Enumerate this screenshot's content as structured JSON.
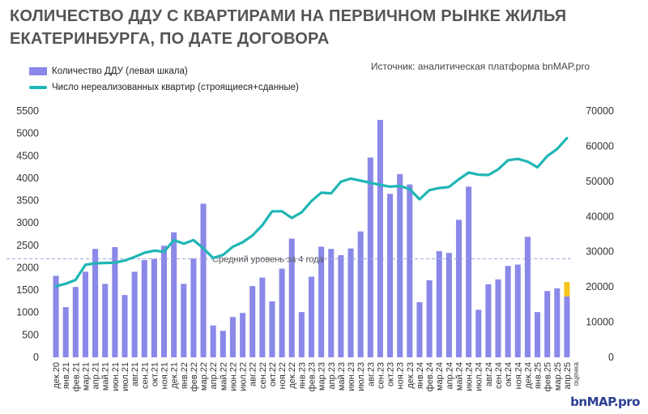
{
  "title_line1": "КОЛИЧЕСТВО ДДУ С КВАРТИРАМИ НА ПЕРВИЧНОМ РЫНКЕ ЖИЛЬЯ",
  "title_line2": "ЕКАТЕРИНБУРГА, ПО ДАТЕ ДОГОВОРА",
  "source": "Источник: аналитическая платформа bnMAP.pro",
  "brand": "bnMAP.pro",
  "colors": {
    "bar": "#8a88e8",
    "bar_estimate": "#f7c41f",
    "line": "#1fb6b5",
    "avg_line": "#9aa2e0"
  },
  "chart_data": {
    "type": "bar",
    "legend": [
      {
        "name": "Количество ДДУ (левая шкала)",
        "kind": "bar"
      },
      {
        "name": "Число нереализованных квартир (строящиеся+сданные)",
        "kind": "line"
      }
    ],
    "categories": [
      "дек.20",
      "янв.21",
      "фев.21",
      "мар.21",
      "апр.21",
      "май.21",
      "июн.21",
      "июл.21",
      "авг.21",
      "сен.21",
      "окт.21",
      "ноя.21",
      "дек.21",
      "янв.22",
      "фев.22",
      "мар.22",
      "апр.22",
      "май.22",
      "июн.22",
      "июл.22",
      "авг.22",
      "сен.22",
      "окт.22",
      "ноя.22",
      "дек.22",
      "янв.23",
      "фев.23",
      "мар.23",
      "апр.23",
      "май.23",
      "июн.23",
      "июл.23",
      "авг.23",
      "сен.23",
      "окт.23",
      "ноя.23",
      "дек.23",
      "янв.24",
      "фев.24",
      "мар.24",
      "апр.24",
      "май.24",
      "июн.24",
      "июл.24",
      "авг.24",
      "сен.24",
      "окт.24",
      "ноя.24",
      "дек.24",
      "янв.25",
      "фев.25",
      "мар.25",
      "апр.25"
    ],
    "estimate_label": "оценка",
    "series": [
      {
        "name": "Количество ДДУ (левая шкала)",
        "axis": "left",
        "values": [
          1820,
          1120,
          1570,
          1910,
          2420,
          1640,
          2460,
          1390,
          1910,
          2170,
          2200,
          2490,
          2790,
          1640,
          2210,
          3430,
          710,
          590,
          900,
          990,
          1590,
          1780,
          1250,
          1980,
          2650,
          1010,
          1800,
          2470,
          2420,
          2280,
          2430,
          2810,
          4460,
          5300,
          3650,
          4090,
          3860,
          1230,
          1720,
          2370,
          2330,
          3070,
          3810,
          1060,
          1630,
          1740,
          2040,
          2070,
          2690,
          1010,
          1480,
          1540,
          1360
        ],
        "estimate_extra": 320
      },
      {
        "name": "Число нереализованных квартир (строящиеся+сданные)",
        "axis": "right",
        "values": [
          20200,
          20900,
          22000,
          26300,
          26700,
          26800,
          26900,
          27500,
          28500,
          29700,
          30300,
          30000,
          33300,
          32300,
          33300,
          31000,
          28200,
          29100,
          31400,
          32700,
          34600,
          37500,
          41500,
          41500,
          39600,
          41200,
          44400,
          46800,
          46600,
          49900,
          50800,
          50200,
          49600,
          49000,
          48500,
          48700,
          47800,
          44900,
          47500,
          48100,
          48400,
          50600,
          52500,
          51900,
          51800,
          53400,
          56000,
          56400,
          55600,
          54000,
          57200,
          59200,
          62300
        ]
      }
    ],
    "avg_line": {
      "label": "Средний уровень за 4 года",
      "value": 2200
    },
    "left_axis": {
      "ylim": [
        0,
        5500
      ],
      "ticks": [
        "0",
        "500",
        "1000",
        "1500",
        "2000",
        "2500",
        "3000",
        "3500",
        "4000",
        "4500",
        "5000",
        "5500"
      ]
    },
    "right_axis": {
      "ylim": [
        0,
        70000
      ],
      "ticks": [
        "0",
        "10000",
        "20000",
        "30000",
        "40000",
        "50000",
        "60000",
        "70000"
      ]
    }
  }
}
